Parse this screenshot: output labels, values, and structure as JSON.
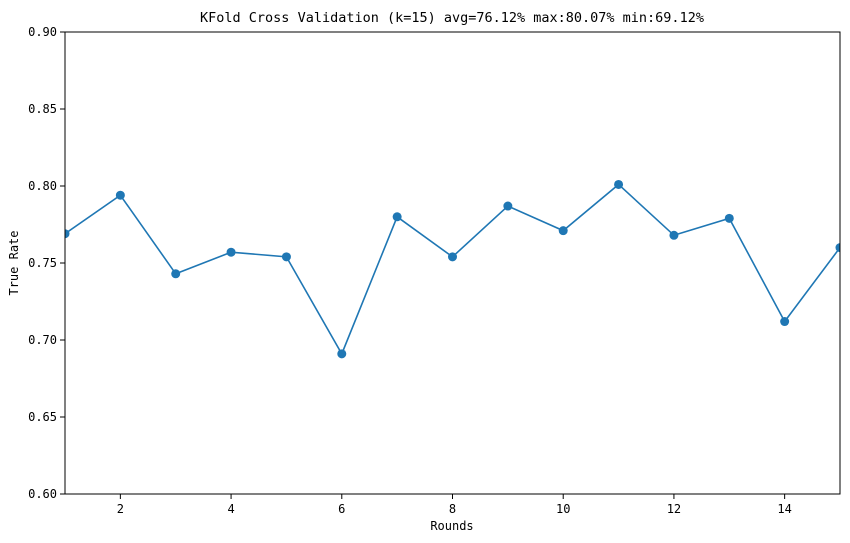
{
  "chart_data": {
    "type": "line",
    "title": "KFold Cross Validation (k=15) avg=76.12% max:80.07% min:69.12%",
    "xlabel": "Rounds",
    "ylabel": "True Rate",
    "xlim": [
      1,
      15
    ],
    "ylim": [
      0.6,
      0.9
    ],
    "xticks": [
      2,
      4,
      6,
      8,
      10,
      12,
      14
    ],
    "yticks": [
      0.6,
      0.65,
      0.7,
      0.75,
      0.8,
      0.85,
      0.9
    ],
    "ytick_labels": [
      "0.60",
      "0.65",
      "0.70",
      "0.75",
      "0.80",
      "0.85",
      "0.90"
    ],
    "grid": false,
    "marker": "circle",
    "series": [
      {
        "color": "#1f77b4",
        "x": [
          1,
          2,
          3,
          4,
          5,
          6,
          7,
          8,
          9,
          10,
          11,
          12,
          13,
          14,
          15
        ],
        "y": [
          0.769,
          0.794,
          0.743,
          0.757,
          0.754,
          0.691,
          0.78,
          0.754,
          0.787,
          0.771,
          0.801,
          0.768,
          0.779,
          0.712,
          0.76
        ]
      }
    ]
  }
}
